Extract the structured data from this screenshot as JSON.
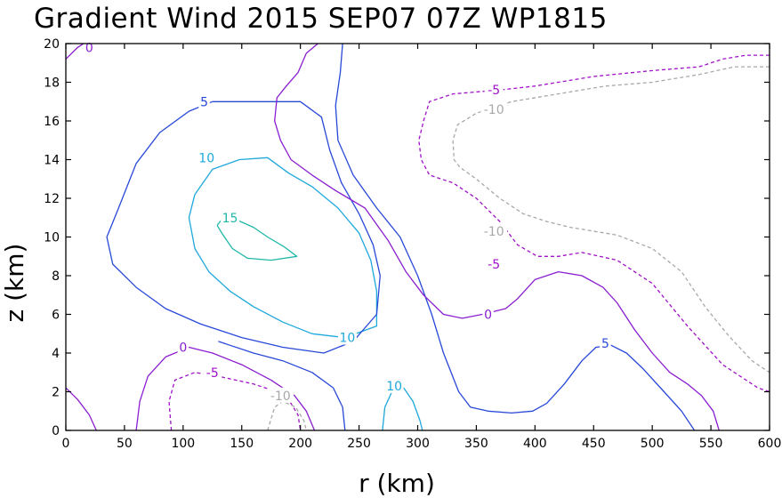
{
  "chart_data": {
    "type": "contour",
    "title": "Gradient Wind 2015 SEP07 07Z   WP1815",
    "xlabel": "r (km)",
    "ylabel": "z (km)",
    "xlim": [
      0,
      600
    ],
    "ylim": [
      0,
      20
    ],
    "xticks": [
      0,
      50,
      100,
      150,
      200,
      250,
      300,
      350,
      400,
      450,
      500,
      550,
      600
    ],
    "yticks": [
      0,
      2,
      4,
      6,
      8,
      10,
      12,
      14,
      16,
      18,
      20
    ],
    "colors": {
      "c15": "#1fb8a8",
      "c10": "#1ea8dc",
      "c5": "#2848d8",
      "c0": "#8a1ed0",
      "cm5": "#a010c8",
      "cm10": "#a8a8a8"
    },
    "contours": [
      {
        "level": 15,
        "color_key": "c15",
        "dashed": false,
        "points": [
          [
            129,
            10.6
          ],
          [
            133,
            10.2
          ],
          [
            142,
            9.4
          ],
          [
            155,
            8.9
          ],
          [
            175,
            8.8
          ],
          [
            197,
            9.0
          ],
          [
            186,
            9.5
          ],
          [
            172,
            10.0
          ],
          [
            160,
            10.5
          ],
          [
            145,
            10.9
          ],
          [
            133,
            10.9
          ],
          [
            129,
            10.6
          ]
        ]
      },
      {
        "level": 10,
        "color_key": "c10",
        "dashed": false,
        "points": [
          [
            238,
            4.8
          ],
          [
            265,
            5.4
          ],
          [
            265,
            7.2
          ],
          [
            260,
            8.8
          ],
          [
            250,
            10.2
          ],
          [
            232,
            11.5
          ],
          [
            210,
            12.6
          ],
          [
            190,
            13.3
          ],
          [
            172,
            14.1
          ],
          [
            148,
            14.0
          ],
          [
            125,
            13.5
          ],
          [
            110,
            12.2
          ],
          [
            105,
            11.0
          ],
          [
            110,
            9.4
          ],
          [
            122,
            8.2
          ],
          [
            140,
            7.2
          ],
          [
            160,
            6.4
          ],
          [
            185,
            5.6
          ],
          [
            210,
            5.0
          ],
          [
            238,
            4.8
          ]
        ]
      },
      {
        "level": 5,
        "color_key": "c5",
        "dashed": false,
        "points": [
          [
            125,
            17.0
          ],
          [
            105,
            16.5
          ],
          [
            80,
            15.4
          ],
          [
            60,
            13.8
          ],
          [
            45,
            11.5
          ],
          [
            35,
            10.0
          ],
          [
            40,
            8.6
          ],
          [
            60,
            7.4
          ],
          [
            85,
            6.3
          ],
          [
            115,
            5.5
          ],
          [
            150,
            4.8
          ],
          [
            185,
            4.3
          ],
          [
            220,
            4.0
          ],
          [
            245,
            4.6
          ],
          [
            265,
            6.0
          ],
          [
            268,
            8.0
          ],
          [
            262,
            9.6
          ],
          [
            250,
            11.2
          ],
          [
            235,
            12.8
          ],
          [
            225,
            14.5
          ],
          [
            218,
            16.2
          ],
          [
            200,
            17.0
          ],
          [
            180,
            17.0
          ],
          [
            160,
            17.0
          ],
          [
            140,
            17.0
          ],
          [
            125,
            17.0
          ]
        ]
      },
      {
        "level": 5,
        "color_key": "c5",
        "dashed": false,
        "points": [
          [
            238,
            0.0
          ],
          [
            236,
            1.2
          ],
          [
            228,
            2.2
          ],
          [
            210,
            3.0
          ],
          [
            185,
            3.6
          ],
          [
            160,
            4.0
          ],
          [
            130,
            4.6
          ]
        ]
      },
      {
        "level": 5,
        "color_key": "c5",
        "dashed": false,
        "points": [
          [
            236,
            20.0
          ],
          [
            234,
            18.5
          ],
          [
            230,
            16.8
          ],
          [
            232,
            15.0
          ],
          [
            245,
            13.2
          ],
          [
            265,
            11.5
          ],
          [
            285,
            10.0
          ],
          [
            300,
            8.0
          ],
          [
            312,
            6.0
          ],
          [
            322,
            4.0
          ],
          [
            335,
            2.0
          ],
          [
            345,
            1.2
          ],
          [
            360,
            1.0
          ],
          [
            380,
            0.9
          ],
          [
            398,
            1.0
          ],
          [
            410,
            1.4
          ],
          [
            425,
            2.4
          ],
          [
            440,
            3.6
          ],
          [
            452,
            4.3
          ],
          [
            465,
            4.4
          ],
          [
            478,
            4.0
          ],
          [
            492,
            3.2
          ],
          [
            510,
            2.0
          ],
          [
            525,
            1.0
          ],
          [
            536,
            0.0
          ]
        ]
      },
      {
        "level": 10,
        "color_key": "c10",
        "dashed": false,
        "points": [
          [
            270,
            0.0
          ],
          [
            272,
            1.2
          ],
          [
            278,
            2.0
          ],
          [
            288,
            2.2
          ],
          [
            296,
            1.5
          ],
          [
            302,
            0.5
          ],
          [
            304,
            0.0
          ]
        ]
      },
      {
        "level": 0,
        "color_key": "c0",
        "dashed": false,
        "points": [
          [
            0,
            19.2
          ],
          [
            10,
            19.8
          ],
          [
            20,
            20.2
          ]
        ]
      },
      {
        "level": 0,
        "color_key": "c0",
        "dashed": false,
        "points": [
          [
            0,
            2.2
          ],
          [
            10,
            1.6
          ],
          [
            20,
            0.8
          ],
          [
            26,
            0.0
          ]
        ]
      },
      {
        "level": 0,
        "color_key": "c0",
        "dashed": false,
        "points": [
          [
            60,
            0.0
          ],
          [
            63,
            1.5
          ],
          [
            70,
            2.8
          ],
          [
            85,
            3.8
          ],
          [
            105,
            4.3
          ],
          [
            125,
            4.0
          ],
          [
            150,
            3.4
          ],
          [
            175,
            2.6
          ],
          [
            195,
            1.8
          ],
          [
            205,
            1.0
          ],
          [
            212,
            0.0
          ]
        ]
      },
      {
        "level": 0,
        "color_key": "c0",
        "dashed": false,
        "points": [
          [
            215,
            20.0
          ],
          [
            205,
            19.5
          ],
          [
            198,
            18.5
          ],
          [
            188,
            17.8
          ],
          [
            180,
            17.2
          ],
          [
            178,
            16.0
          ],
          [
            183,
            15.0
          ],
          [
            192,
            14.0
          ],
          [
            210,
            13.2
          ],
          [
            230,
            12.4
          ],
          [
            255,
            11.5
          ],
          [
            275,
            9.8
          ],
          [
            290,
            8.2
          ],
          [
            305,
            7.0
          ],
          [
            322,
            6.0
          ],
          [
            338,
            5.8
          ],
          [
            355,
            6.0
          ],
          [
            375,
            6.3
          ],
          [
            385,
            6.8
          ],
          [
            400,
            7.8
          ],
          [
            420,
            8.2
          ],
          [
            440,
            8.0
          ],
          [
            458,
            7.4
          ],
          [
            470,
            6.6
          ],
          [
            485,
            5.2
          ],
          [
            500,
            4.0
          ],
          [
            515,
            3.0
          ],
          [
            530,
            2.4
          ],
          [
            542,
            1.8
          ],
          [
            552,
            1.0
          ],
          [
            557,
            0.0
          ]
        ]
      },
      {
        "level": -5,
        "color_key": "cm5",
        "dashed": true,
        "points": [
          [
            90,
            0.0
          ],
          [
            88,
            1.5
          ],
          [
            93,
            2.6
          ],
          [
            110,
            3.0
          ],
          [
            130,
            2.8
          ],
          [
            160,
            2.4
          ],
          [
            180,
            2.0
          ],
          [
            192,
            1.4
          ],
          [
            198,
            0.8
          ],
          [
            200,
            0.0
          ]
        ]
      },
      {
        "level": -5,
        "color_key": "cm5",
        "dashed": true,
        "points": [
          [
            600,
            19.4
          ],
          [
            580,
            19.4
          ],
          [
            560,
            19.2
          ],
          [
            540,
            18.8
          ],
          [
            500,
            18.6
          ],
          [
            450,
            18.3
          ],
          [
            400,
            17.8
          ],
          [
            370,
            17.6
          ],
          [
            350,
            17.5
          ],
          [
            330,
            17.4
          ],
          [
            310,
            17.0
          ],
          [
            305,
            16.0
          ],
          [
            301,
            15.0
          ],
          [
            303,
            14.0
          ],
          [
            310,
            13.2
          ],
          [
            330,
            12.8
          ],
          [
            350,
            12.0
          ],
          [
            370,
            10.8
          ],
          [
            385,
            9.6
          ],
          [
            402,
            9.0
          ],
          [
            420,
            9.0
          ],
          [
            440,
            9.2
          ],
          [
            470,
            8.8
          ],
          [
            500,
            7.6
          ],
          [
            530,
            5.4
          ],
          [
            560,
            3.4
          ],
          [
            590,
            2.2
          ],
          [
            600,
            2.0
          ]
        ]
      },
      {
        "level": -10,
        "color_key": "cm10",
        "dashed": true,
        "points": [
          [
            600,
            18.8
          ],
          [
            570,
            18.8
          ],
          [
            540,
            18.4
          ],
          [
            500,
            18.0
          ],
          [
            460,
            17.8
          ],
          [
            410,
            17.3
          ],
          [
            380,
            17.0
          ],
          [
            350,
            16.4
          ],
          [
            334,
            15.8
          ],
          [
            330,
            15.0
          ],
          [
            331,
            14.0
          ],
          [
            336,
            13.6
          ],
          [
            350,
            13.0
          ],
          [
            370,
            12.0
          ],
          [
            390,
            11.2
          ],
          [
            410,
            10.8
          ],
          [
            430,
            10.5
          ],
          [
            450,
            10.3
          ],
          [
            470,
            10.1
          ],
          [
            500,
            9.4
          ],
          [
            525,
            8.2
          ],
          [
            545,
            6.4
          ],
          [
            565,
            4.9
          ],
          [
            585,
            3.6
          ],
          [
            600,
            3.0
          ]
        ]
      },
      {
        "level": -10,
        "color_key": "cm10",
        "dashed": true,
        "points": [
          [
            172,
            0.0
          ],
          [
            178,
            1.2
          ],
          [
            185,
            1.5
          ],
          [
            196,
            1.2
          ],
          [
            203,
            0.5
          ],
          [
            205,
            0.0
          ]
        ]
      }
    ],
    "labels": [
      {
        "text": "15",
        "x": 140,
        "y": 11.0,
        "color_key": "c15"
      },
      {
        "text": "10",
        "x": 120,
        "y": 14.1,
        "color_key": "c10"
      },
      {
        "text": "10",
        "x": 240,
        "y": 4.8,
        "color_key": "c10"
      },
      {
        "text": "10",
        "x": 280,
        "y": 2.3,
        "color_key": "c10"
      },
      {
        "text": "5",
        "x": 118,
        "y": 17.0,
        "color_key": "c5"
      },
      {
        "text": "5",
        "x": 460,
        "y": 4.5,
        "color_key": "c5"
      },
      {
        "text": "0",
        "x": 20,
        "y": 19.8,
        "color_key": "c0"
      },
      {
        "text": "0",
        "x": 100,
        "y": 4.3,
        "color_key": "c0"
      },
      {
        "text": "0",
        "x": 360,
        "y": 6.0,
        "color_key": "c0"
      },
      {
        "text": "-5",
        "x": 125,
        "y": 3.0,
        "color_key": "cm5"
      },
      {
        "text": "-5",
        "x": 365,
        "y": 17.6,
        "color_key": "cm5"
      },
      {
        "text": "-5",
        "x": 365,
        "y": 8.6,
        "color_key": "cm5"
      },
      {
        "text": "-10",
        "x": 183,
        "y": 1.8,
        "color_key": "cm10"
      },
      {
        "text": "-10",
        "x": 365,
        "y": 16.6,
        "color_key": "cm10"
      },
      {
        "text": "-10",
        "x": 365,
        "y": 10.3,
        "color_key": "cm10"
      }
    ]
  }
}
